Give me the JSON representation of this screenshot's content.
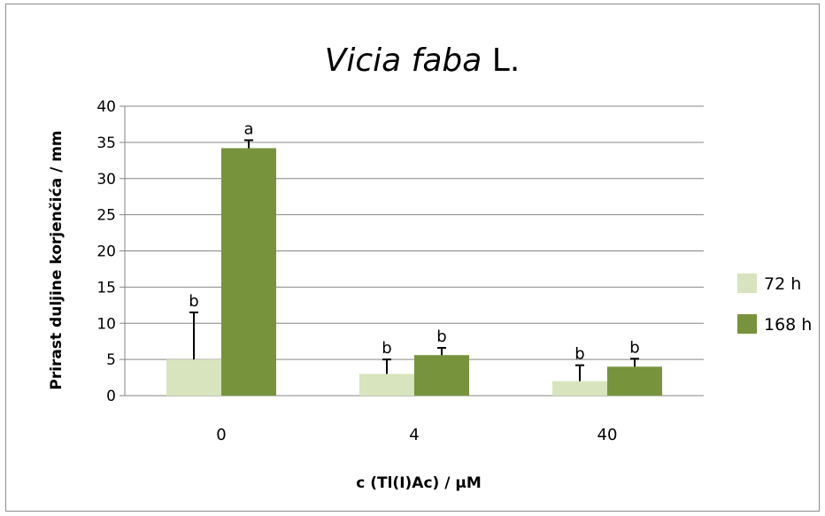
{
  "chart_data": {
    "type": "bar",
    "title": {
      "italic_part": "Vicia faba",
      "normal_part": "L."
    },
    "xlabel": "c (Tl(I)Ac) / µM",
    "ylabel": "Prirast duljine korjenčića / mm",
    "categories": [
      "0",
      "4",
      "40"
    ],
    "ylim": [
      0,
      40
    ],
    "yticks": [
      0,
      5,
      10,
      15,
      20,
      25,
      30,
      35,
      40
    ],
    "grid": true,
    "legend_position": "right",
    "series": [
      {
        "name": "72 h",
        "color": "#d7e4bd",
        "values": [
          5.0,
          3.0,
          2.0
        ],
        "errors": [
          6.5,
          2.0,
          2.2
        ],
        "letters": [
          "b",
          "b",
          "b"
        ]
      },
      {
        "name": "168 h",
        "color": "#77933c",
        "values": [
          34.2,
          5.6,
          4.0
        ],
        "errors": [
          1.1,
          1.0,
          1.1
        ],
        "letters": [
          "a",
          "b",
          "b"
        ]
      }
    ]
  }
}
